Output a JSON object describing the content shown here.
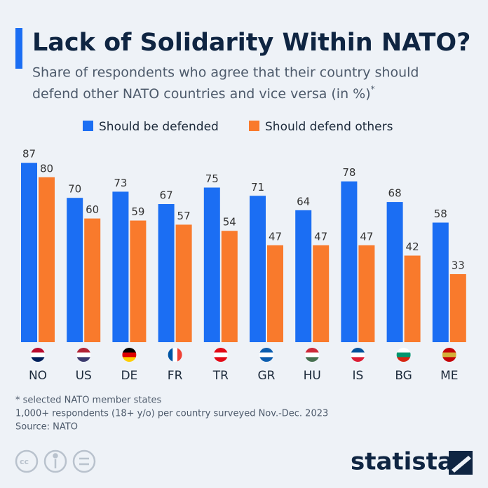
{
  "chart_data": {
    "type": "bar",
    "title": "Lack of Solidarity Within NATO?",
    "subtitle": [
      "Share of respondents who agree that their country should",
      "defend other NATO countries and vice versa (in %)"
    ],
    "subtitle_note": "*",
    "categories": [
      "NO",
      "US",
      "DE",
      "FR",
      "TR",
      "GR",
      "HU",
      "IS",
      "BG",
      "ME"
    ],
    "series": [
      {
        "name": "Should be defended",
        "color": "#1b6ef3",
        "values": [
          87,
          70,
          73,
          67,
          75,
          71,
          64,
          78,
          68,
          58
        ]
      },
      {
        "name": "Should defend others",
        "color": "#f97a2c",
        "values": [
          80,
          60,
          59,
          57,
          54,
          47,
          47,
          47,
          42,
          33
        ]
      }
    ],
    "notes": [
      "* selected NATO member states",
      "1,000+ respondents (18+ y/o) per country surveyed Nov.-Dec. 2023"
    ],
    "source": "Source: NATO",
    "brand": "statista"
  }
}
